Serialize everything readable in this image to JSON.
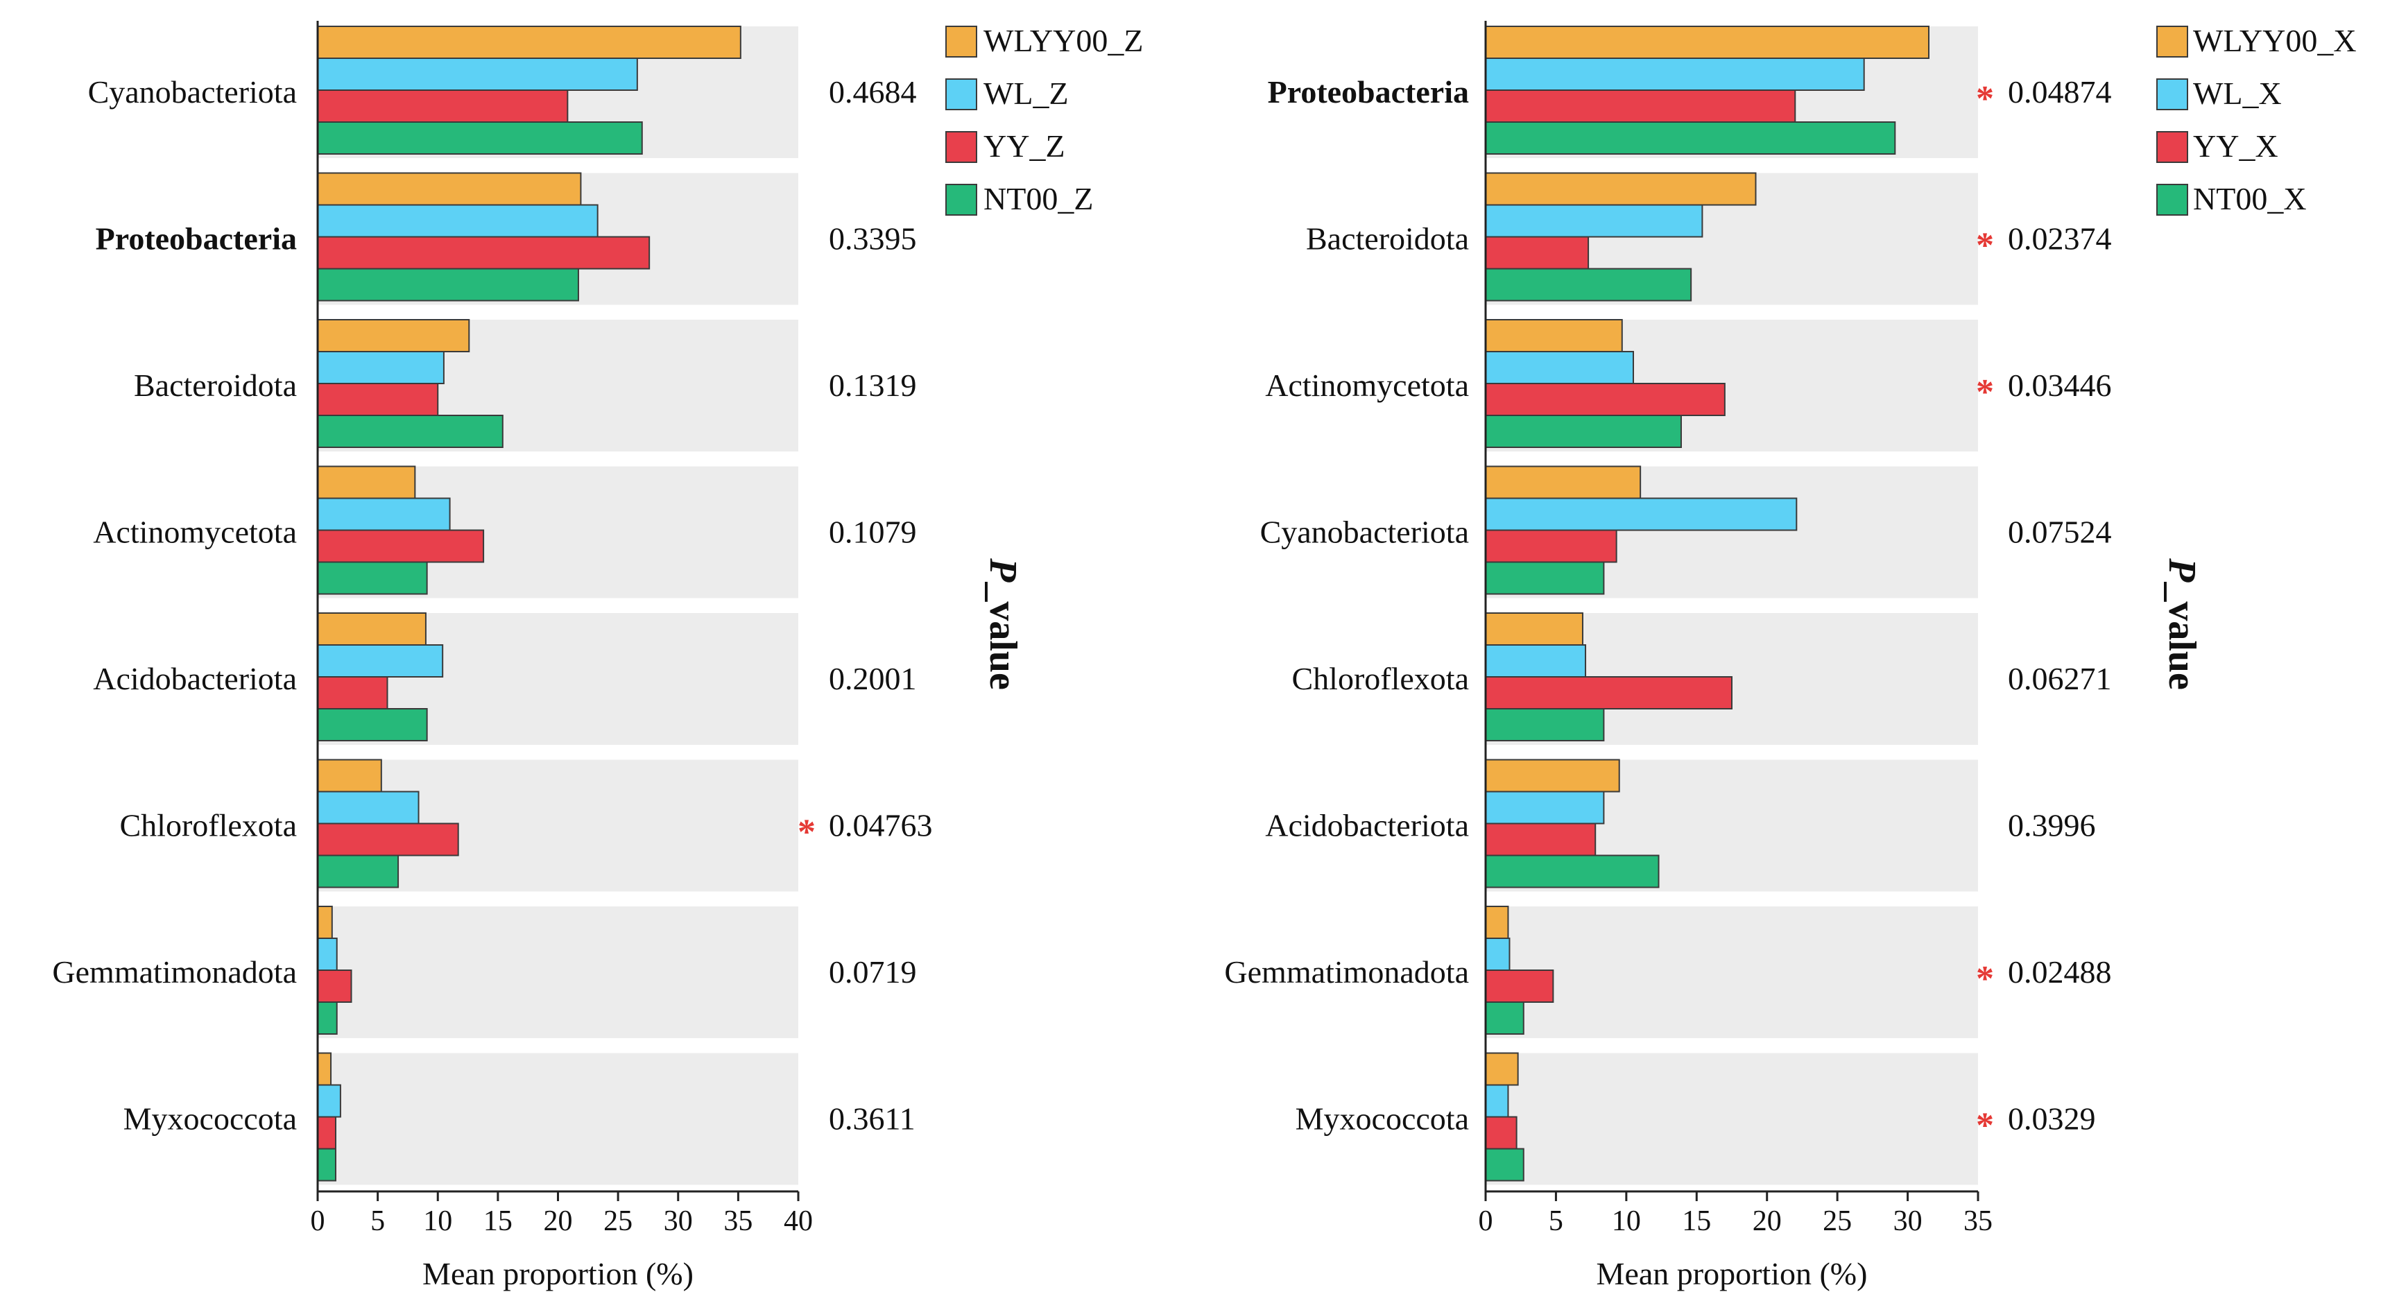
{
  "chart_data": [
    {
      "type": "bar",
      "orientation": "horizontal",
      "title": "",
      "xlabel": "Mean proportion (%)",
      "ylabel": "",
      "xlim": [
        0,
        40
      ],
      "xticks": [
        0,
        5,
        10,
        15,
        20,
        25,
        30,
        35,
        40
      ],
      "side_label": "P_value",
      "categories": [
        "Cyanobacteriota",
        "Proteobacteria",
        "Bacteroidota",
        "Actinomycetota",
        "Acidobacteriota",
        "Chloroflexota",
        "Gemmatimonadota",
        "Myxococcota"
      ],
      "bold_categories": [
        "Proteobacteria"
      ],
      "series": [
        {
          "name": "WLYY00_Z",
          "color": "#f2ae45",
          "values": [
            35.2,
            21.9,
            12.6,
            8.1,
            9.0,
            5.3,
            1.2,
            1.1
          ]
        },
        {
          "name": "WL_Z",
          "color": "#5dd1f5",
          "values": [
            26.6,
            23.3,
            10.5,
            11.0,
            10.4,
            8.4,
            1.6,
            1.9
          ]
        },
        {
          "name": "YY_Z",
          "color": "#e8404c",
          "values": [
            20.8,
            27.6,
            10.0,
            13.8,
            5.8,
            11.7,
            2.8,
            1.5
          ]
        },
        {
          "name": "NT00_Z",
          "color": "#26b97a",
          "values": [
            27.0,
            21.7,
            15.4,
            9.1,
            9.1,
            6.7,
            1.6,
            1.5
          ]
        }
      ],
      "p_values": [
        "0.4684",
        "0.3395",
        "0.1319",
        "0.1079",
        "0.2001",
        "0.04763",
        "0.0719",
        "0.3611"
      ],
      "significant": [
        false,
        false,
        false,
        false,
        false,
        true,
        false,
        false
      ],
      "significance_marker": "*"
    },
    {
      "type": "bar",
      "orientation": "horizontal",
      "title": "",
      "xlabel": "Mean proportion (%)",
      "ylabel": "",
      "xlim": [
        0,
        35
      ],
      "xticks": [
        0,
        5,
        10,
        15,
        20,
        25,
        30,
        35
      ],
      "side_label": "P_value",
      "categories": [
        "Proteobacteria",
        "Bacteroidota",
        "Actinomycetota",
        "Cyanobacteriota",
        "Chloroflexota",
        "Acidobacteriota",
        "Gemmatimonadota",
        "Myxococcota"
      ],
      "bold_categories": [
        "Proteobacteria"
      ],
      "series": [
        {
          "name": "WLYY00_X",
          "color": "#f2ae45",
          "values": [
            31.5,
            19.2,
            9.7,
            11.0,
            6.9,
            9.5,
            1.6,
            2.3
          ]
        },
        {
          "name": "WL_X",
          "color": "#5dd1f5",
          "values": [
            26.9,
            15.4,
            10.5,
            22.1,
            7.1,
            8.4,
            1.7,
            1.6
          ]
        },
        {
          "name": "YY_X",
          "color": "#e8404c",
          "values": [
            22.0,
            7.3,
            17.0,
            9.3,
            17.5,
            7.8,
            4.8,
            2.2
          ]
        },
        {
          "name": "NT00_X",
          "color": "#26b97a",
          "values": [
            29.1,
            14.6,
            13.9,
            8.4,
            8.4,
            12.3,
            2.7,
            2.7
          ]
        }
      ],
      "p_values": [
        "0.04874",
        "0.02374",
        "0.03446",
        "0.07524",
        "0.06271",
        "0.3996",
        "0.02488",
        "0.0329"
      ],
      "significant": [
        true,
        true,
        true,
        false,
        false,
        false,
        true,
        true
      ],
      "significance_marker": "*"
    }
  ]
}
